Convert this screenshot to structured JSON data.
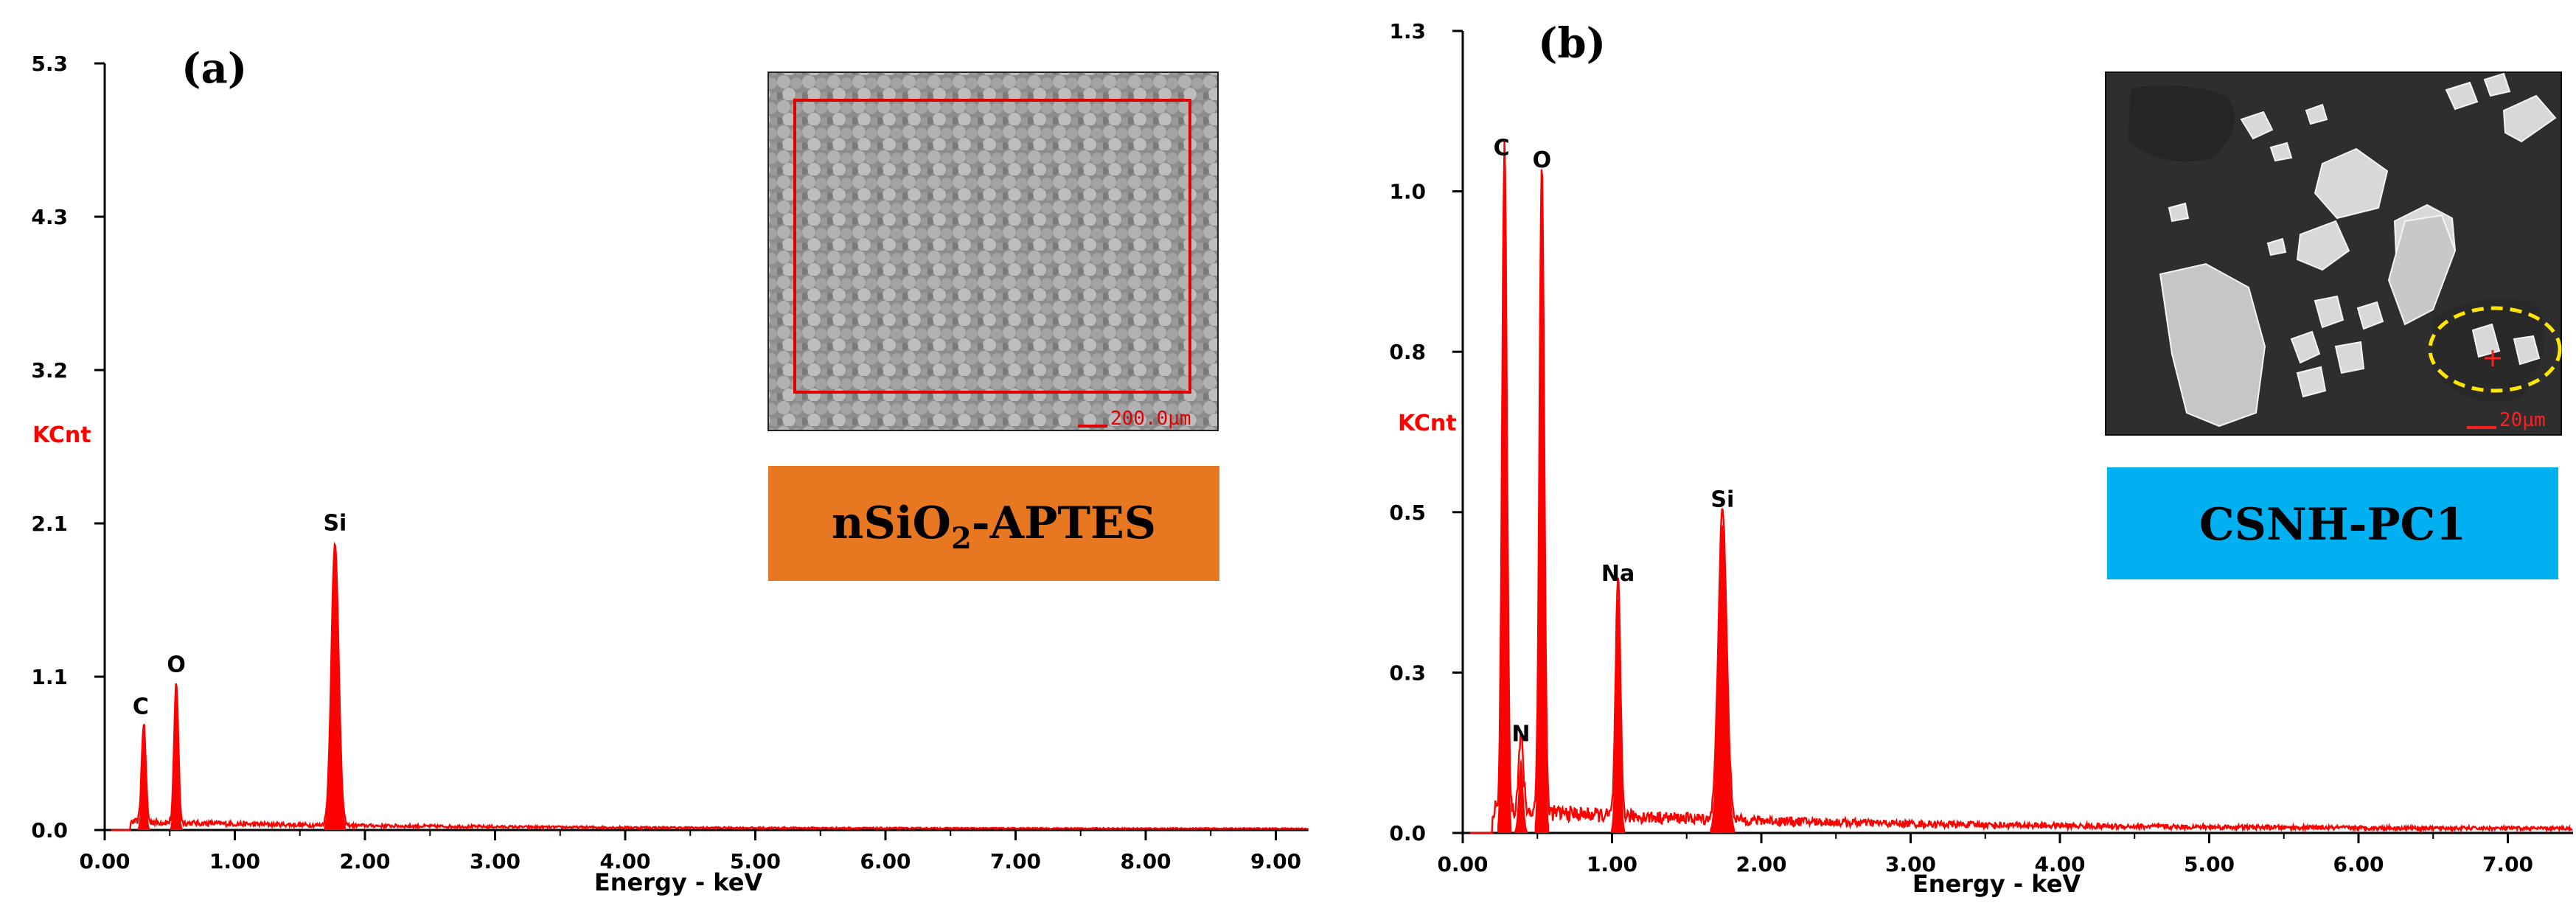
{
  "chart_data": [
    {
      "type": "line",
      "panel_label": "(a)",
      "title": "",
      "xlabel": "Energy - keV",
      "ylabel": "KCnt",
      "xlim": [
        0,
        9.25
      ],
      "ylim": [
        0,
        5.3
      ],
      "x_ticks": [
        "0.00",
        "1.00",
        "2.00",
        "3.00",
        "4.00",
        "5.00",
        "6.00",
        "7.00",
        "8.00",
        "9.00"
      ],
      "y_ticks": [
        "0.0",
        "1.1",
        "2.1",
        "3.2",
        "4.3",
        "5.3"
      ],
      "peaks": [
        {
          "label": "C",
          "energy": 0.3,
          "counts": 0.68
        },
        {
          "label": "O",
          "energy": 0.55,
          "counts": 0.97
        },
        {
          "label": "Si",
          "energy": 1.77,
          "counts": 1.95
        }
      ],
      "baseline": 0.03,
      "inset": {
        "image": "SEM micrograph of nSiO2-APTES with red selection rectangle",
        "scale_bar": "200.0µm",
        "sample_name_main": "nSiO",
        "sample_name_sub": "2",
        "sample_name_rest": "-APTES",
        "badge_color": "#E87722"
      }
    },
    {
      "type": "line",
      "panel_label": "(b)",
      "title": "",
      "xlabel": "Energy - keV",
      "ylabel": "KCnt",
      "xlim": [
        0,
        7.5
      ],
      "ylim": [
        0,
        1.3
      ],
      "x_ticks": [
        "0.00",
        "1.00",
        "2.00",
        "3.00",
        "4.00",
        "5.00",
        "6.00",
        "7.00"
      ],
      "y_ticks": [
        "0.0",
        "0.3",
        "0.5",
        "0.8",
        "1.0",
        "1.3"
      ],
      "peaks": [
        {
          "label": "C",
          "energy": 0.28,
          "counts": 1.07
        },
        {
          "label": "N",
          "energy": 0.39,
          "counts": 0.12
        },
        {
          "label": "O",
          "energy": 0.53,
          "counts": 1.05
        },
        {
          "label": "Na",
          "energy": 1.04,
          "counts": 0.38
        },
        {
          "label": "Si",
          "energy": 1.74,
          "counts": 0.5
        }
      ],
      "baseline": 0.02,
      "inset": {
        "image": "SEM micrograph of CSNH-PC1 particles with yellow dashed ellipse marking analyzed spot",
        "scale_bar": "20µm",
        "sample_name": "CSNH-PC1",
        "badge_color": "#00B0F0"
      }
    }
  ],
  "colors": {
    "spectrum": "#FF0000",
    "axis": "#000000",
    "ylabel": "#FF0000"
  }
}
